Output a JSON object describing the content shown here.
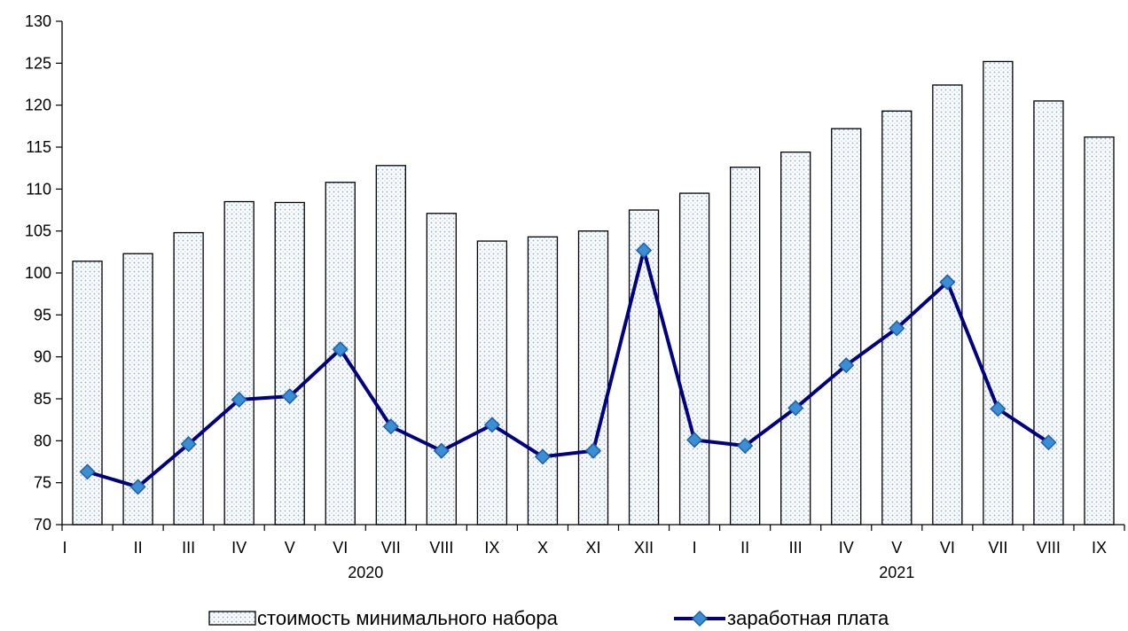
{
  "chart_data": {
    "type": "bar",
    "title": "",
    "xlabel": "",
    "ylabel": "",
    "ylim": [
      70,
      130
    ],
    "yticks": [
      70,
      75,
      80,
      85,
      90,
      95,
      100,
      105,
      110,
      115,
      120,
      125,
      130
    ],
    "grid": false,
    "legend_position": "bottom",
    "categories": [
      "I",
      "II",
      "III",
      "IV",
      "V",
      "VI",
      "VII",
      "VIII",
      "IX",
      "X",
      "XI",
      "XII",
      "I",
      "II",
      "III",
      "IV",
      "V",
      "VI",
      "VII",
      "VIII",
      "IX"
    ],
    "year_labels": [
      {
        "label": "2020",
        "start": 0,
        "end": 11
      },
      {
        "label": "2021",
        "start": 12,
        "end": 20
      }
    ],
    "series": [
      {
        "name": "стоимость минимального набора",
        "type": "bar",
        "color": "#9db8e8",
        "values": [
          101.4,
          102.3,
          104.8,
          108.5,
          108.4,
          110.8,
          112.8,
          107.1,
          103.8,
          104.3,
          105.0,
          107.5,
          109.5,
          112.6,
          114.4,
          117.2,
          119.3,
          122.4,
          125.2,
          120.5,
          116.2
        ]
      },
      {
        "name": "заработная плата",
        "type": "line",
        "color": "#000080",
        "marker_color": "#3a8fd4",
        "values": [
          76.3,
          74.5,
          79.6,
          84.9,
          85.3,
          90.9,
          81.7,
          78.8,
          81.9,
          78.1,
          78.8,
          102.7,
          80.1,
          79.4,
          83.9,
          89.0,
          93.4,
          98.9,
          83.8,
          79.8,
          null
        ]
      }
    ]
  }
}
